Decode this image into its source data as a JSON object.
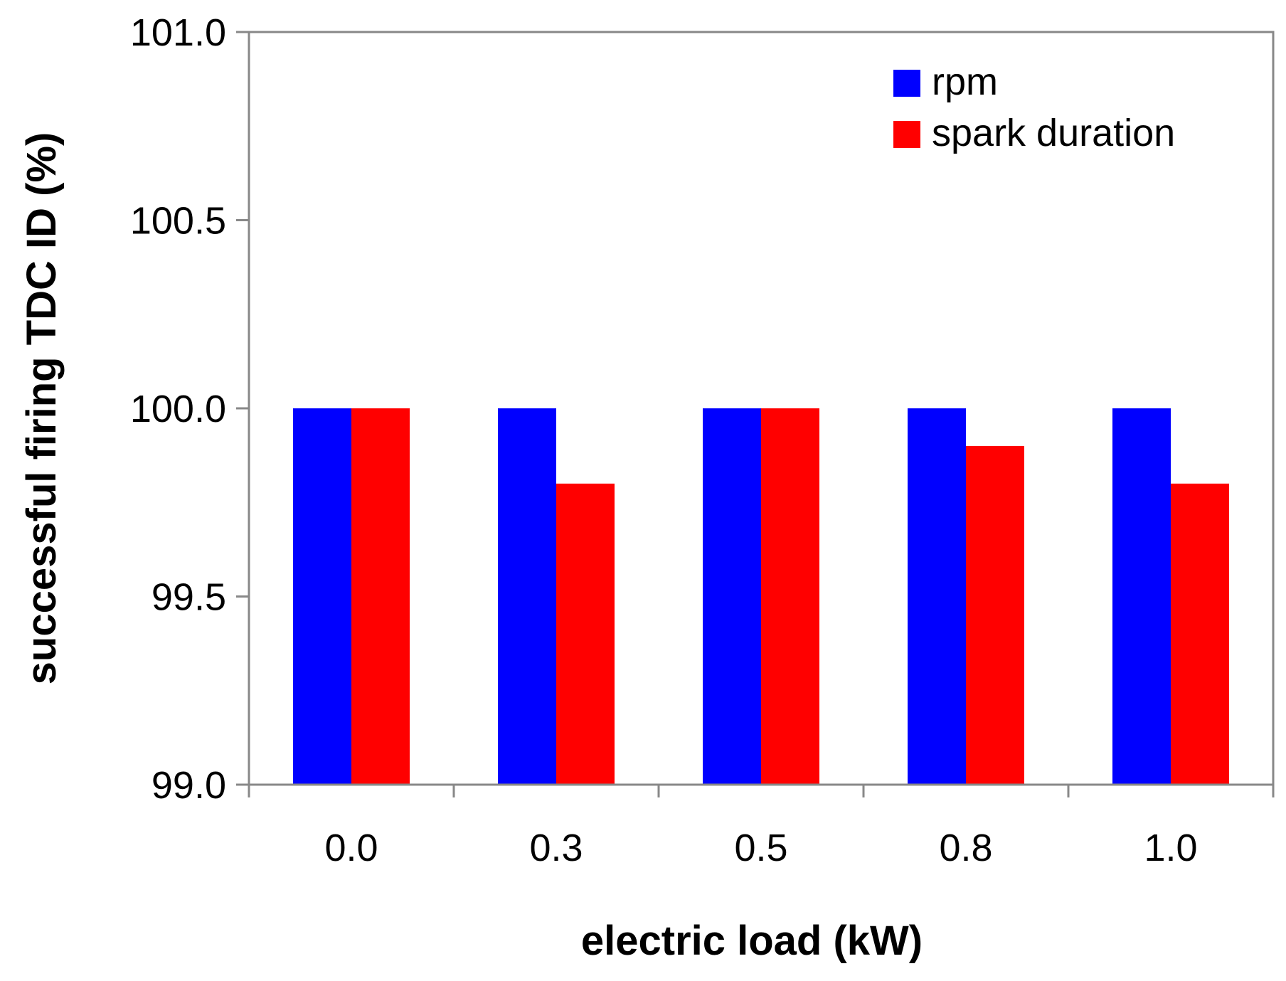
{
  "chart_data": {
    "type": "bar",
    "title": "",
    "xlabel": "electric load (kW)",
    "ylabel": "successful firing TDC ID (%)",
    "categories": [
      "0.0",
      "0.3",
      "0.5",
      "0.8",
      "1.0"
    ],
    "series": [
      {
        "name": "rpm",
        "color": "#0000ff",
        "values": [
          100.0,
          100.0,
          100.0,
          100.0,
          100.0
        ]
      },
      {
        "name": "spark duration",
        "color": "#ff0000",
        "values": [
          100.0,
          99.8,
          100.0,
          99.9,
          99.8
        ]
      }
    ],
    "ylim": [
      99.0,
      101.0
    ],
    "yticks": [
      "99.0",
      "99.5",
      "100.0",
      "100.5",
      "101.0"
    ],
    "grid": false,
    "legend_position": "top-right",
    "axis_color": "#888888"
  }
}
